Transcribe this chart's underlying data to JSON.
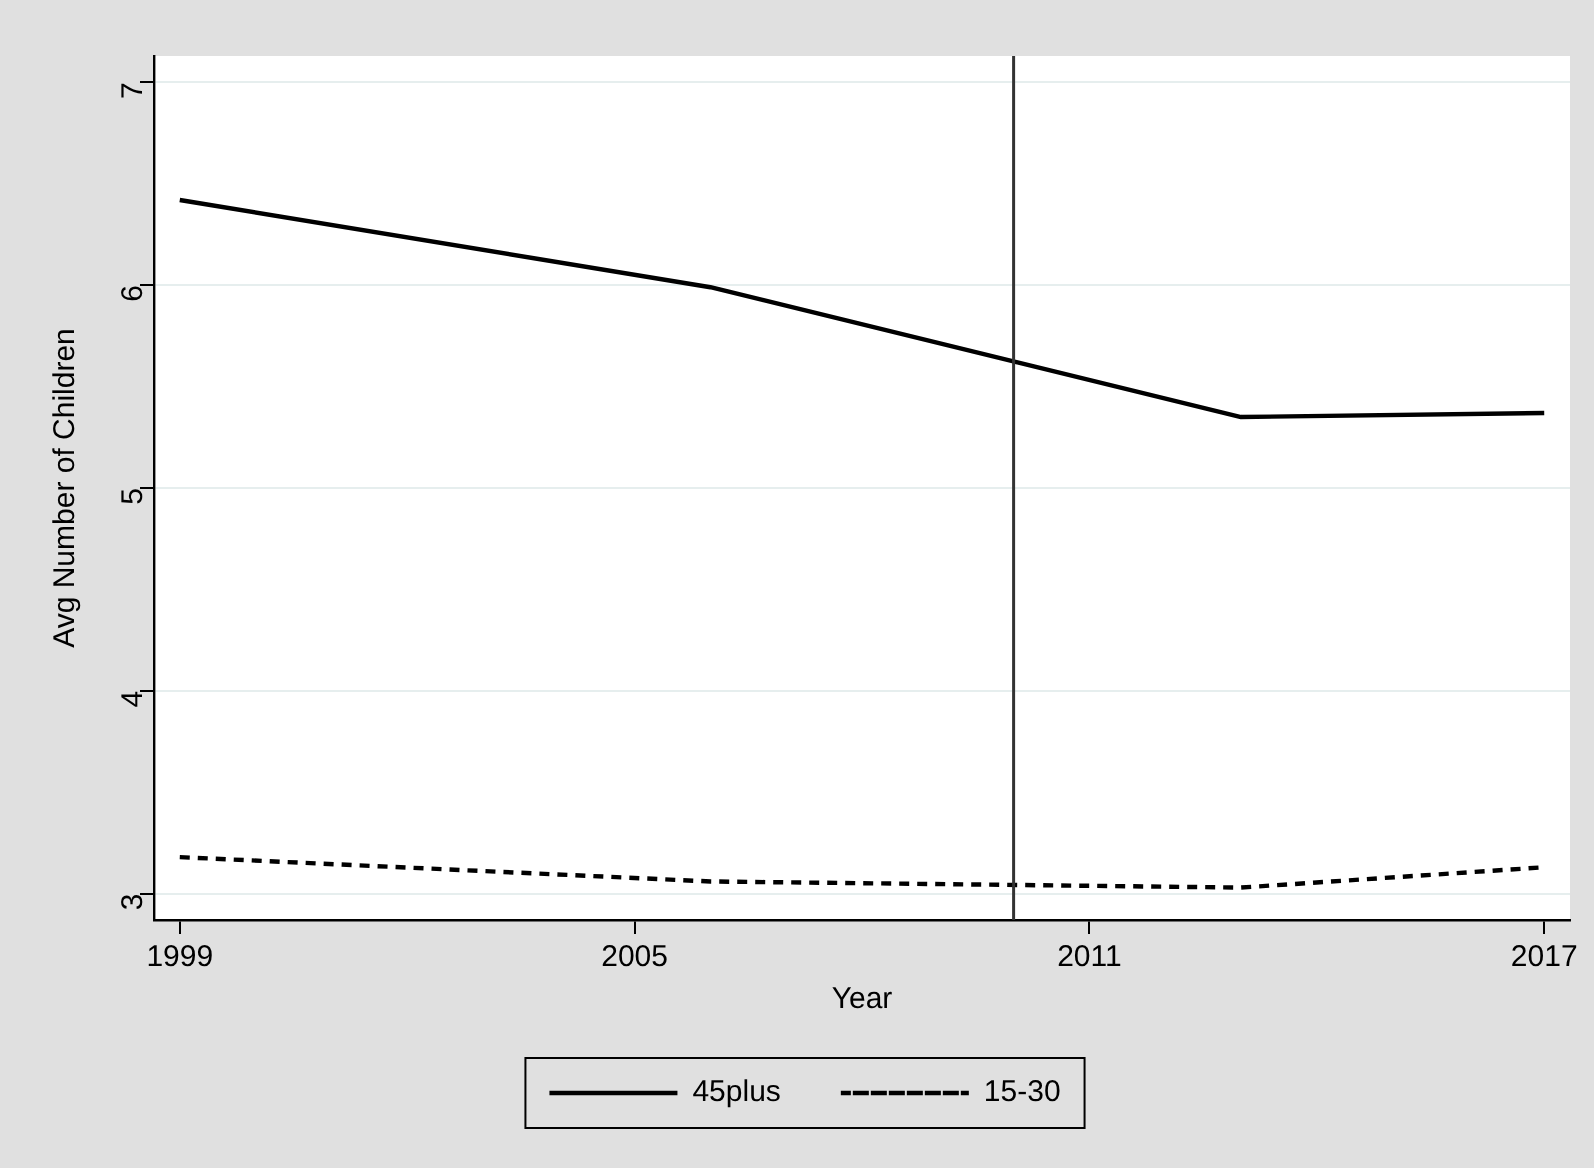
{
  "chart_data": {
    "type": "line",
    "xlabel": "Year",
    "ylabel": "Avg Number of Children",
    "x": [
      1999,
      2006,
      2013,
      2017
    ],
    "series": [
      {
        "name": "45plus",
        "color": "#000000",
        "values": [
          6.42,
          5.99,
          5.35,
          5.37
        ],
        "line_style": "solid"
      },
      {
        "name": "15-30",
        "color": "#000000",
        "values": [
          3.18,
          3.06,
          3.03,
          3.13
        ],
        "line_style": "dashed"
      }
    ],
    "xlim": [
      1998.66,
      2017.34
    ],
    "xticks": [
      1999,
      2005,
      2011,
      2017
    ],
    "ylim": [
      2.87,
      7.13
    ],
    "yticks": [
      3,
      4,
      5,
      6,
      7
    ],
    "ref_lines": [
      {
        "axis": "x",
        "value": 2010,
        "color": "#333333"
      }
    ],
    "grid": "y",
    "legend": "bottom",
    "marker": "none"
  }
}
